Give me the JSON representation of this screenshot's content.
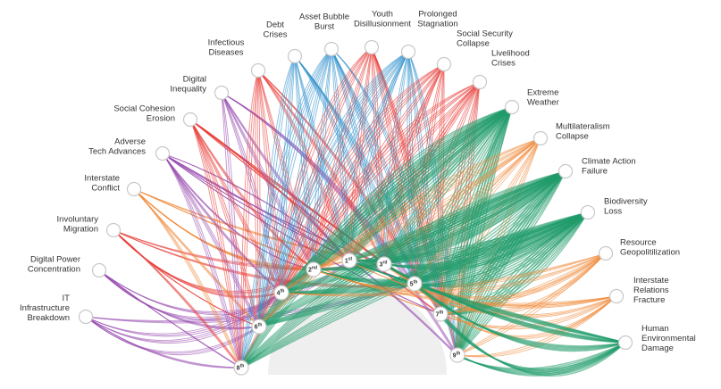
{
  "colors": {
    "societal": "#e8403a",
    "economic": "#2f8fcc",
    "technological": "#9a4fb0",
    "geopolitical": "#f08a3a",
    "environmental": "#1f9a6a",
    "hub_fill": "#efefef",
    "node_stroke": "#c8c8c8"
  },
  "risks": [
    {
      "id": "it",
      "lines": [
        "IT",
        "Infrastructure",
        "Breakdown"
      ],
      "category": "technological",
      "icon": "circle-node-icon"
    },
    {
      "id": "dp",
      "lines": [
        "Digital Power",
        "Concentration"
      ],
      "category": "technological",
      "icon": "circle-node-icon"
    },
    {
      "id": "im",
      "lines": [
        "Involuntary",
        "Migration"
      ],
      "category": "societal",
      "icon": "circle-node-icon"
    },
    {
      "id": "ic",
      "lines": [
        "Interstate",
        "Conflict"
      ],
      "category": "geopolitical",
      "icon": "circle-node-icon"
    },
    {
      "id": "at",
      "lines": [
        "Adverse",
        "Tech Advances"
      ],
      "category": "technological",
      "icon": "circle-node-icon"
    },
    {
      "id": "sc",
      "lines": [
        "Social Cohesion",
        "Erosion"
      ],
      "category": "societal",
      "icon": "circle-node-icon"
    },
    {
      "id": "di",
      "lines": [
        "Digital",
        "Inequality"
      ],
      "category": "technological",
      "icon": "circle-node-icon"
    },
    {
      "id": "id",
      "lines": [
        "Infectious",
        "Diseases"
      ],
      "category": "societal",
      "icon": "circle-node-icon"
    },
    {
      "id": "dc",
      "lines": [
        "Debt",
        "Crises"
      ],
      "category": "economic",
      "icon": "circle-node-icon"
    },
    {
      "id": "ab",
      "lines": [
        "Asset Bubble",
        "Burst"
      ],
      "category": "economic",
      "icon": "circle-node-icon"
    },
    {
      "id": "yd",
      "lines": [
        "Youth",
        "Disillusionment"
      ],
      "category": "societal",
      "icon": "circle-node-icon"
    },
    {
      "id": "ps",
      "lines": [
        "Prolonged",
        "Stagnation"
      ],
      "category": "economic",
      "icon": "circle-node-icon"
    },
    {
      "id": "ss",
      "lines": [
        "Social Security",
        "Collapse"
      ],
      "category": "societal",
      "icon": "circle-node-icon"
    },
    {
      "id": "lc",
      "lines": [
        "Livelihood",
        "Crises"
      ],
      "category": "societal",
      "icon": "circle-node-icon"
    },
    {
      "id": "ew",
      "lines": [
        "Extreme",
        "Weather"
      ],
      "category": "environmental",
      "icon": "circle-node-icon"
    },
    {
      "id": "mc",
      "lines": [
        "Multilateralism",
        "Collapse"
      ],
      "category": "geopolitical",
      "icon": "circle-node-icon"
    },
    {
      "id": "ca",
      "lines": [
        "Climate Action",
        "Failure"
      ],
      "category": "environmental",
      "icon": "circle-node-icon"
    },
    {
      "id": "bl",
      "lines": [
        "Biodiversity",
        "Loss"
      ],
      "category": "environmental",
      "icon": "circle-node-icon"
    },
    {
      "id": "rg",
      "lines": [
        "Resource",
        "Geopolitilization"
      ],
      "category": "geopolitical",
      "icon": "circle-node-icon"
    },
    {
      "id": "ir",
      "lines": [
        "Interstate",
        "Relations",
        "Fracture"
      ],
      "category": "geopolitical",
      "icon": "circle-node-icon"
    },
    {
      "id": "he",
      "lines": [
        "Human",
        "Environmental",
        "Damage"
      ],
      "category": "environmental",
      "icon": "circle-node-icon"
    }
  ],
  "ranks": [
    {
      "num": "8",
      "suffix": "th"
    },
    {
      "num": "6",
      "suffix": "th"
    },
    {
      "num": "4",
      "suffix": "th"
    },
    {
      "num": "2",
      "suffix": "nd"
    },
    {
      "num": "1",
      "suffix": "st"
    },
    {
      "num": "3",
      "suffix": "rd"
    },
    {
      "num": "5",
      "suffix": "th"
    },
    {
      "num": "7",
      "suffix": "th"
    },
    {
      "num": "9",
      "suffix": "th"
    }
  ]
}
